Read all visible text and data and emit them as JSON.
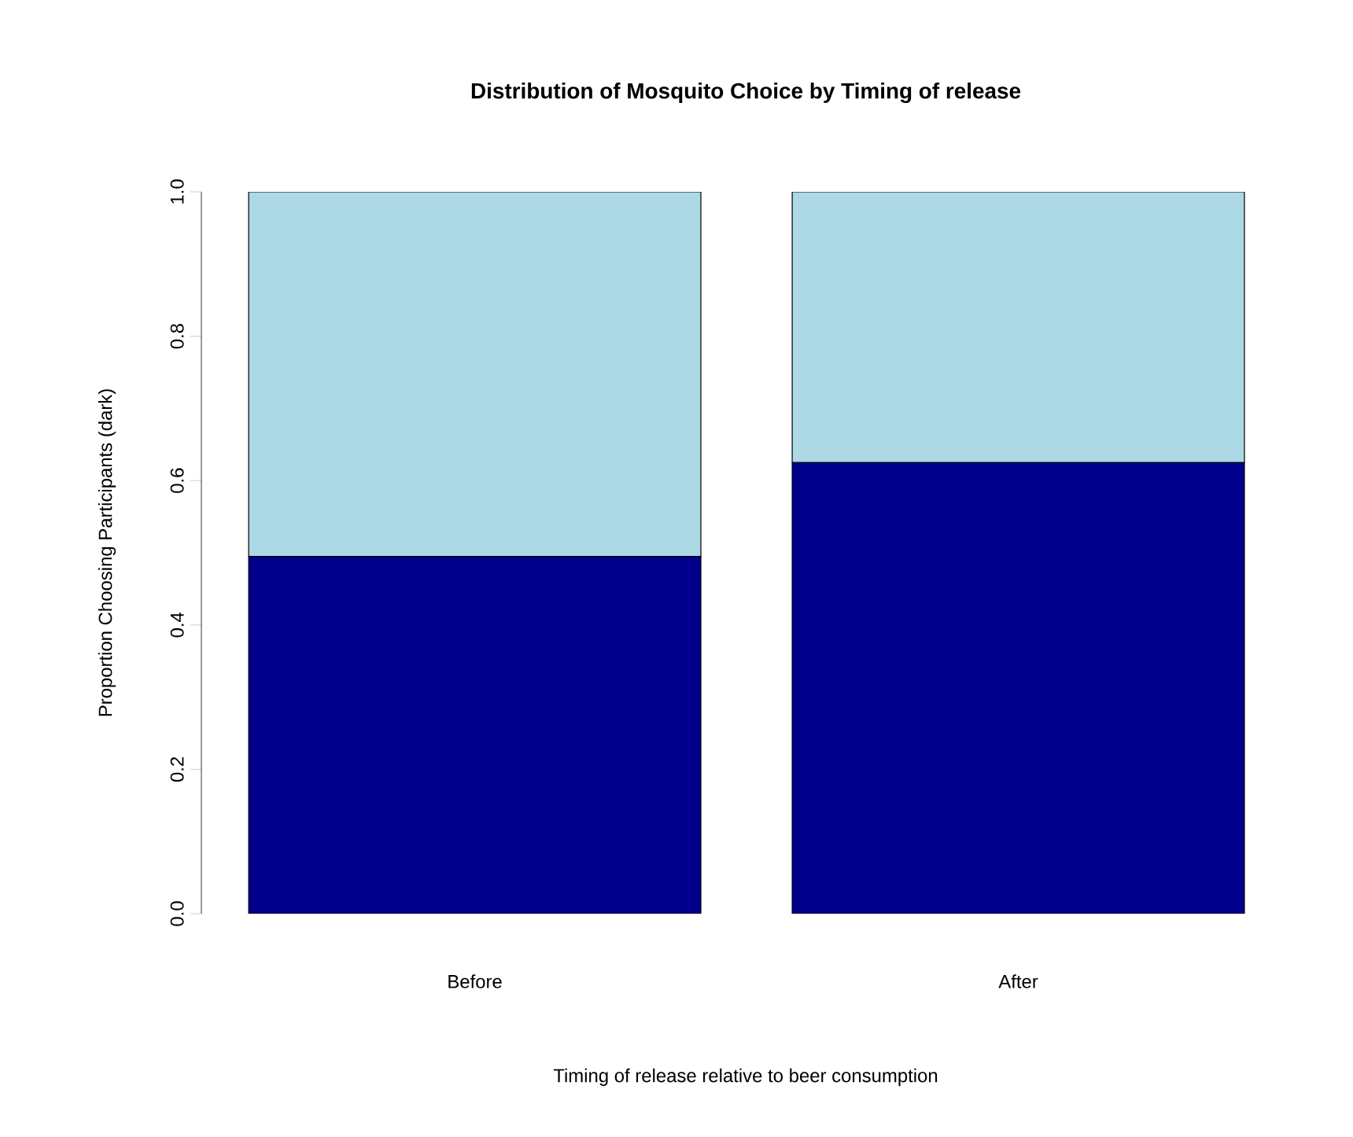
{
  "chart_data": {
    "type": "bar",
    "title": "Distribution of Mosquito Choice by Timing of release",
    "xlabel": "Timing of release relative to beer consumption",
    "ylabel": "Proportion Choosing Participants (dark)",
    "categories": [
      "Before",
      "After"
    ],
    "stacked": true,
    "series": [
      {
        "color": "#00008b",
        "values": [
          0.495,
          0.625
        ]
      },
      {
        "color": "#add8e6",
        "values": [
          0.505,
          0.375
        ]
      }
    ],
    "ylim": [
      0,
      1
    ],
    "yticks": [
      {
        "value": 0,
        "label": "0.0"
      },
      {
        "value": 0.2,
        "label": "0.2"
      },
      {
        "value": 0.4,
        "label": "0.4"
      },
      {
        "value": 0.6,
        "label": "0.6"
      },
      {
        "value": 0.8,
        "label": "0.8"
      },
      {
        "value": 1,
        "label": "1.0"
      }
    ]
  }
}
